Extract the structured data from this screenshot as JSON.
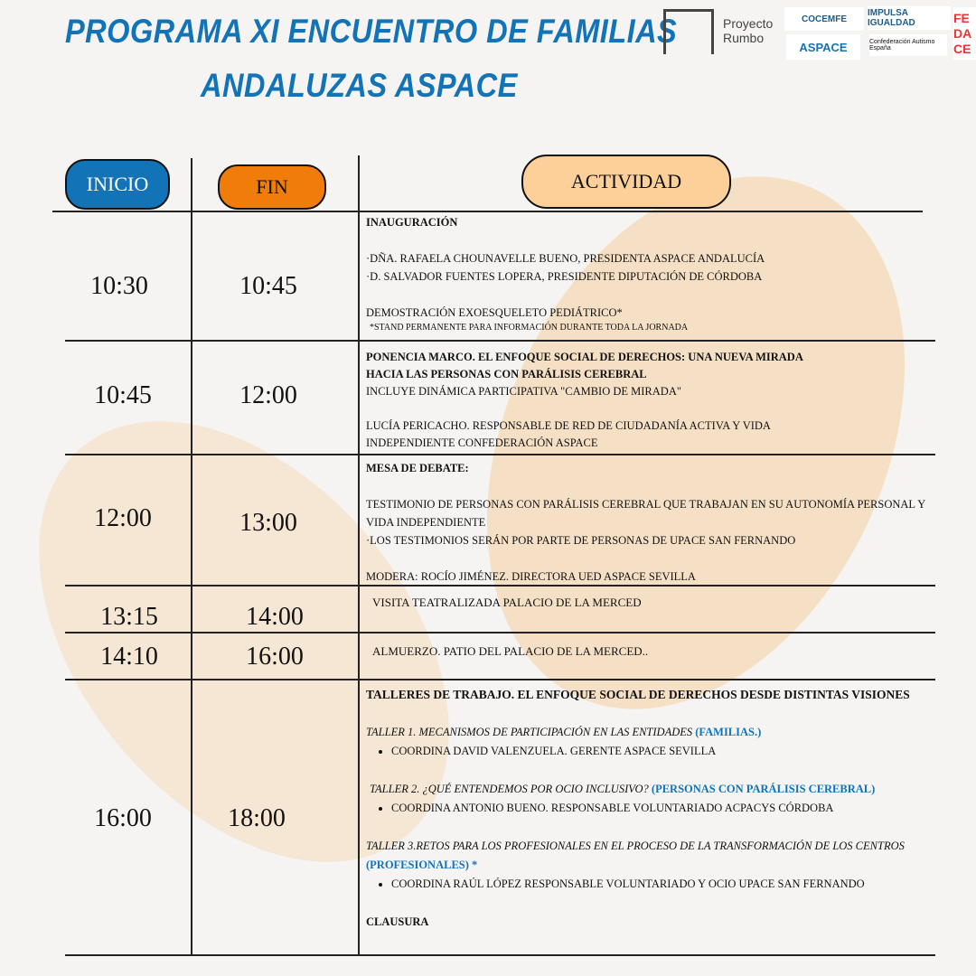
{
  "title": {
    "line1": "PROGRAMA XI ENCUENTRO DE FAMILIAS",
    "line2": "ANDALUZAS ASPACE"
  },
  "logos": {
    "rumbo": "Proyecto Rumbo",
    "cocemfe": "COCEMFE",
    "impulsa": "IMPULSA IGUALDAD",
    "aspace": "ASPACE",
    "aspace_sub": "Confederación",
    "autismo": "Confederación Autismo España",
    "fedace": "FEDACE"
  },
  "headers": {
    "inicio": "INICIO",
    "fin": "FIN",
    "actividad": "ACTIVIDAD"
  },
  "colors": {
    "inicio": "#1273b7",
    "fin": "#f07d0a",
    "actividad": "#fdd09a",
    "title": "#1273b7"
  },
  "rows": [
    {
      "start": "10:30",
      "end": "10:45",
      "lines": [
        "INAUGURACIÓN",
        "",
        "·DÑA. RAFAELA CHOUNAVELLE BUENO, PRESIDENTA ASPACE ANDALUCÍA",
        "·D. SALVADOR FUENTES LOPERA, PRESIDENTE DIPUTACIÓN DE CÓRDOBA",
        "",
        "DEMOSTRACIÓN EXOESQUELETO PEDIÁTRICO*",
        "*STAND PERMANENTE PARA INFORMACIÓN DURANTE TODA LA JORNADA"
      ]
    },
    {
      "start": "10:45",
      "end": "12:00",
      "lines": [
        "PONENCIA MARCO. EL ENFOQUE SOCIAL DE DERECHOS: UNA NUEVA MIRADA",
        "HACIA LAS PERSONAS CON PARÁLISIS CEREBRAL",
        "INCLUYE DINÁMICA PARTICIPATIVA \"CAMBIO DE MIRADA\"",
        "",
        "LUCÍA PERICACHO. RESPONSABLE DE RED DE CIUDADANÍA ACTIVA Y VIDA",
        "INDEPENDIENTE CONFEDERACIÓN ASPACE"
      ]
    },
    {
      "start": "12:00",
      "end": "13:00",
      "lines": [
        "MESA DE DEBATE:",
        "",
        "TESTIMONIO DE PERSONAS CON PARÁLISIS CEREBRAL QUE TRABAJAN EN SU AUTONOMÍA PERSONAL Y",
        "VIDA INDEPENDIENTE",
        "·LOS TESTIMONIOS SERÁN POR PARTE DE PERSONAS DE UPACE SAN FERNANDO",
        "",
        "MODERA: ROCÍO JIMÉNEZ. DIRECTORA UED ASPACE SEVILLA"
      ]
    },
    {
      "start": "13:15",
      "end": "14:00",
      "lines": [
        "VISITA TEATRALIZADA PALACIO DE LA MERCED"
      ]
    },
    {
      "start": "14:10",
      "end": "16:00",
      "lines": [
        "ALMUERZO. PATIO DEL PALACIO DE LA MERCED.."
      ]
    },
    {
      "start": "16:00",
      "end": "18:00",
      "heading": "TALLERES DE TRABAJO. EL ENFOQUE SOCIAL DE DERECHOS DESDE DISTINTAS VISIONES",
      "talleres": [
        {
          "title": "TALLER 1. MECANISMOS DE PARTICIPACIÓN EN LAS ENTIDADES",
          "tag": "(FAMILIAS.)",
          "coord": "COORDINA DAVID VALENZUELA. GERENTE ASPACE SEVILLA"
        },
        {
          "title": "TALLER 2. ¿QUÉ ENTENDEMOS POR OCIO INCLUSIVO?",
          "tag": "(PERSONAS CON PARÁLISIS CEREBRAL)",
          "coord": "COORDINA ANTONIO BUENO. RESPONSABLE VOLUNTARIADO ACPACYS CÓRDOBA"
        },
        {
          "title": "TALLER 3.RETOS PARA LOS PROFESIONALES EN EL PROCESO DE  LA TRANSFORMACIÓN DE LOS CENTROS",
          "tag": "(PROFESIONALES) *",
          "coord": "COORDINA RAÚL LÓPEZ RESPONSABLE VOLUNTARIADO Y OCIO UPACE SAN FERNANDO"
        }
      ],
      "closing": "CLAUSURA"
    }
  ]
}
